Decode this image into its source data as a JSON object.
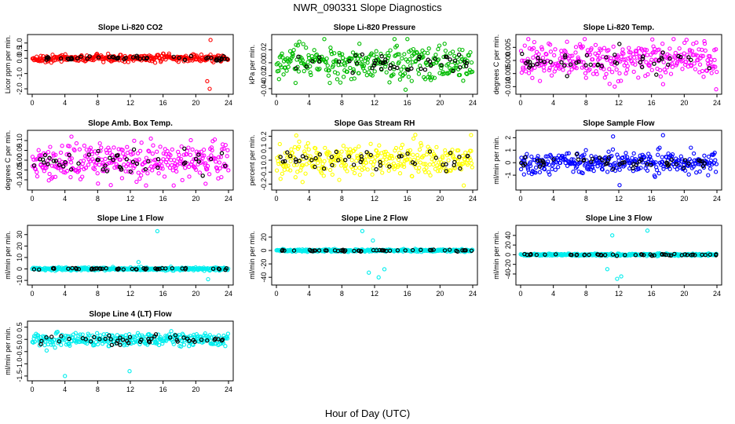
{
  "figure": {
    "title": "NWR_090331  Slope Diagnostics",
    "xlabel": "Hour of Day (UTC)",
    "x_ticks": [
      "0",
      "4",
      "8",
      "12",
      "16",
      "20",
      "24"
    ]
  },
  "chart_data": [
    {
      "type": "scatter",
      "title": "Slope Li-820 CO2",
      "ylabel": "Licor ppm per min.",
      "color": "#ff0000",
      "ylim": [
        -2.2,
        1.4
      ],
      "y_ticks": [
        "-2.0",
        "-1.0",
        "0.0",
        "0.5",
        "1.0"
      ],
      "y_tick_values": [
        -2.0,
        -1.0,
        0.0,
        0.5,
        1.0
      ],
      "xlim": [
        0,
        24
      ],
      "spread": 0.25,
      "outliers": [
        [
          21.8,
          1.2
        ],
        [
          21.7,
          -2.0
        ],
        [
          21.4,
          -1.5
        ]
      ]
    },
    {
      "type": "scatter",
      "title": "Slope Li-820 Pressure",
      "ylabel": "kPa per min.",
      "color": "#00bb00",
      "ylim": [
        -0.045,
        0.04
      ],
      "y_ticks": [
        "-0.04",
        "-0.02",
        "0.00",
        "0.02"
      ],
      "y_tick_values": [
        -0.04,
        -0.02,
        0.0,
        0.02
      ],
      "xlim": [
        0,
        24
      ],
      "spread": 0.03,
      "outliers": []
    },
    {
      "type": "scatter",
      "title": "Slope Li-820 Temp.",
      "ylabel": "degrees C per min.",
      "color": "#ff00ff",
      "ylim": [
        -0.012,
        0.009
      ],
      "y_ticks": [
        "-0.010",
        "-0.005",
        "0.000",
        "0.005"
      ],
      "y_tick_values": [
        -0.01,
        -0.005,
        0.0,
        0.005
      ],
      "xlim": [
        0,
        24
      ],
      "spread": 0.008,
      "outliers": [
        [
          23.9,
          -0.011
        ],
        [
          16.1,
          0.008
        ],
        [
          11.5,
          -0.01
        ]
      ]
    },
    {
      "type": "scatter",
      "title": "Slope Amb. Box Temp.",
      "ylabel": "degrees C per min.",
      "color": "#ff00ff",
      "ylim": [
        -0.14,
        0.14
      ],
      "y_ticks": [
        "-0.10",
        "-0.05",
        "0.00",
        "0.05",
        "0.10"
      ],
      "y_tick_values": [
        -0.1,
        -0.05,
        0.0,
        0.05,
        0.1
      ],
      "xlim": [
        0,
        24
      ],
      "spread": 0.1,
      "outliers": [
        [
          4.8,
          0.12
        ],
        [
          21.2,
          -0.12
        ]
      ]
    },
    {
      "type": "scatter",
      "title": "Slope Gas Stream RH",
      "ylabel": "percent per min.",
      "color": "#ffff00",
      "ylim": [
        -0.23,
        0.23
      ],
      "y_ticks": [
        "-0.2",
        "-0.1",
        "0.0",
        "0.1",
        "0.2"
      ],
      "y_tick_values": [
        -0.2,
        -0.1,
        0.0,
        0.1,
        0.2
      ],
      "xlim": [
        0,
        24
      ],
      "spread": 0.16,
      "outliers": [
        [
          23.8,
          0.21
        ]
      ]
    },
    {
      "type": "scatter",
      "title": "Slope Sample Flow",
      "ylabel": "ml/min per min.",
      "color": "#0000ff",
      "ylim": [
        -2.0,
        2.4
      ],
      "y_ticks": [
        "-1",
        "0",
        "1",
        "2"
      ],
      "y_tick_values": [
        -1,
        0,
        1,
        2
      ],
      "xlim": [
        0,
        24
      ],
      "spread": 0.9,
      "outliers": [
        [
          12.1,
          -1.8
        ],
        [
          17.4,
          2.2
        ],
        [
          11.3,
          2.1
        ]
      ]
    },
    {
      "type": "scatter",
      "title": "Slope Line 1 Flow",
      "ylabel": "ml/min per min.",
      "color": "#00eeee",
      "ylim": [
        -12,
        36
      ],
      "y_ticks": [
        "-10",
        "0",
        "10",
        "20",
        "30"
      ],
      "y_tick_values": [
        -10,
        0,
        10,
        20,
        30
      ],
      "xlim": [
        0,
        24
      ],
      "spread": 1.5,
      "outliers": [
        [
          15.3,
          33
        ],
        [
          21.5,
          -9
        ],
        [
          13,
          6
        ]
      ]
    },
    {
      "type": "scatter",
      "title": "Slope Line 2 Flow",
      "ylabel": "ml/min per min.",
      "color": "#00eeee",
      "ylim": [
        -48,
        34
      ],
      "y_ticks": [
        "-40",
        "-20",
        "0",
        "20"
      ],
      "y_tick_values": [
        -40,
        -20,
        0,
        20
      ],
      "xlim": [
        0,
        24
      ],
      "spread": 2.0,
      "outliers": [
        [
          10.5,
          29
        ],
        [
          11.3,
          -33
        ],
        [
          12.5,
          -40
        ],
        [
          13.2,
          -28
        ],
        [
          11.8,
          15
        ]
      ]
    },
    {
      "type": "scatter",
      "title": "Slope Line 3 Flow",
      "ylabel": "ml/min per min.",
      "color": "#00eeee",
      "ylim": [
        -58,
        56
      ],
      "y_ticks": [
        "-40",
        "-20",
        "0",
        "20",
        "40"
      ],
      "y_tick_values": [
        -40,
        -20,
        0,
        20,
        40
      ],
      "xlim": [
        0,
        24
      ],
      "spread": 2.5,
      "outliers": [
        [
          11.2,
          40
        ],
        [
          11.8,
          -50
        ],
        [
          12.3,
          -45
        ],
        [
          15.5,
          50
        ],
        [
          10.6,
          -30
        ]
      ]
    },
    {
      "type": "scatter",
      "title": "Slope Line 4 (LT) Flow",
      "ylabel": "ml/min per min.",
      "color": "#00eeee",
      "ylim": [
        -1.6,
        0.65
      ],
      "y_ticks": [
        "-1.5",
        "-1.0",
        "-0.5",
        "0.0",
        "0.5"
      ],
      "y_tick_values": [
        -1.5,
        -1.0,
        -0.5,
        0.0,
        0.5
      ],
      "xlim": [
        0,
        24
      ],
      "spread": 0.3,
      "outliers": [
        [
          4,
          -1.5
        ],
        [
          11.9,
          -1.3
        ]
      ]
    }
  ]
}
